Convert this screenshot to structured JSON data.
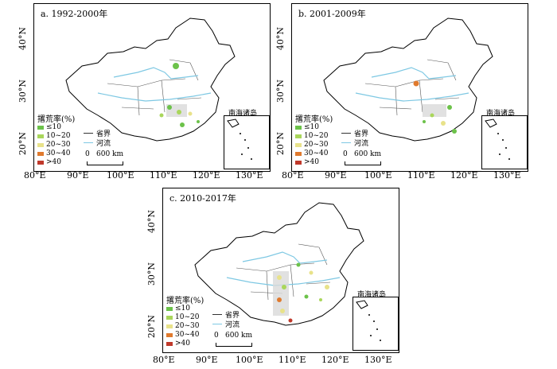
{
  "colors": {
    "lt10": "#6cc24a",
    "10to20": "#a9d65b",
    "20to30": "#e8e28a",
    "30to40": "#e07a2e",
    "gt40": "#c0392b",
    "river": "#7ec8e3",
    "boundary": "#333333",
    "highlight": "#d9d9d9"
  },
  "panels": [
    {
      "title": "a. 1992-2000年",
      "x_ticks": [
        "80°E",
        "90°E",
        "100°E",
        "110°E",
        "120°E",
        "130°E"
      ],
      "y_ticks": [
        "40°N",
        "30°N",
        "20°N"
      ],
      "inset_title": "南海诸岛"
    },
    {
      "title": "b. 2001-2009年",
      "x_ticks": [
        "80°E",
        "90°E",
        "100°E",
        "110°E",
        "120°E",
        "130°E"
      ],
      "y_ticks": [
        "40°N",
        "30°N",
        "20°N"
      ],
      "inset_title": "南海诸岛"
    },
    {
      "title": "c. 2010-2017年",
      "x_ticks": [
        "80°E",
        "90°E",
        "100°E",
        "110°E",
        "120°E",
        "130°E"
      ],
      "y_ticks": [
        "40°N",
        "30°N",
        "20°N"
      ],
      "inset_title": "南海诸岛"
    }
  ],
  "legend": {
    "title": "撂荒率(%)",
    "items": [
      "≤10",
      "10~20",
      "20~30",
      "30~40",
      ">40"
    ],
    "boundary_label": "省界",
    "river_label": "河流",
    "scale_zero": "0",
    "scale_label": "600 km"
  }
}
